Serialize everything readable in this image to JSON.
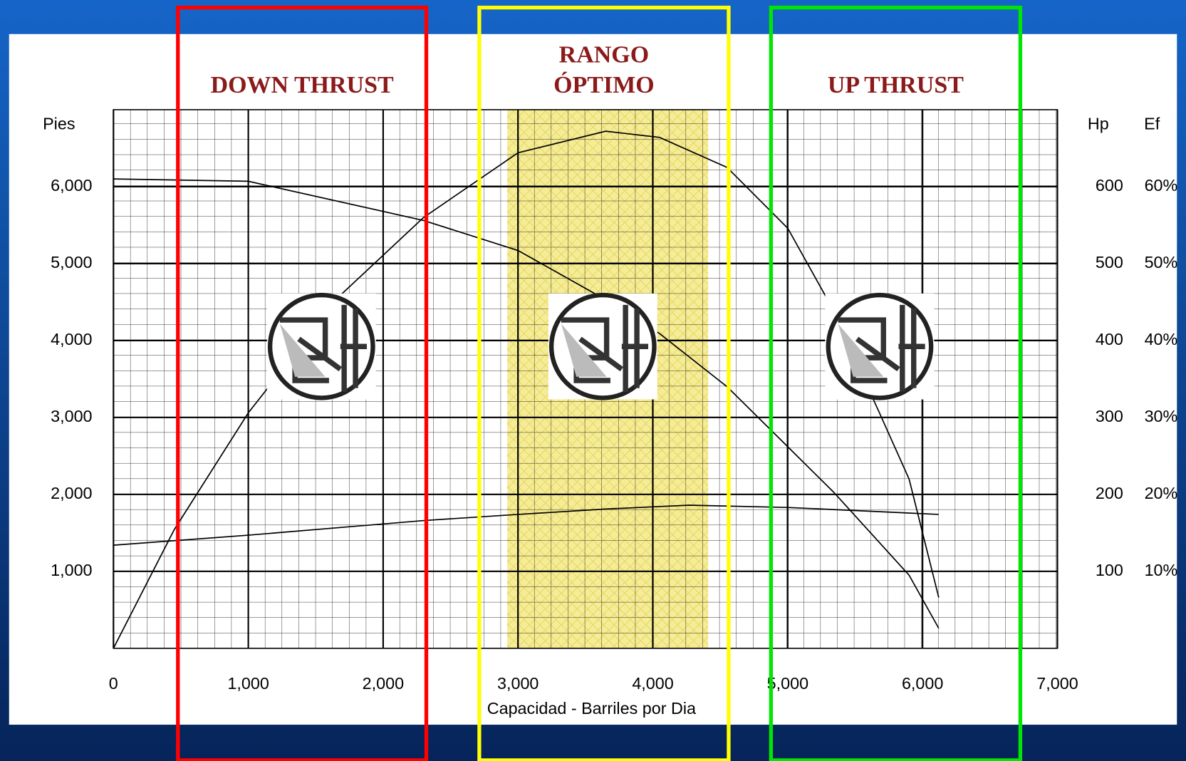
{
  "chart_data": {
    "type": "line",
    "xlabel": "Capacidad - Barriles por Dia",
    "ylabel": "Pies",
    "y2label": "Hp",
    "y3label": "Ef",
    "xlim": [
      0,
      7000
    ],
    "xticks": [
      0,
      {
        "value": 1000,
        "label": "1,000"
      },
      {
        "value": 2000,
        "label": "2,000"
      },
      {
        "value": 3000,
        "label": "3,000"
      },
      {
        "value": 4000,
        "label": "4,000"
      },
      {
        "value": 5000,
        "label": "5,000"
      },
      {
        "value": 6000,
        "label": "6,000"
      },
      {
        "value": 7000,
        "label": "7,000"
      }
    ],
    "ylim": [
      0,
      7000
    ],
    "yticks": [
      {
        "value": 1000,
        "label": "1,000"
      },
      {
        "value": 2000,
        "label": "2,000"
      },
      {
        "value": 3000,
        "label": "3,000"
      },
      {
        "value": 4000,
        "label": "4,000"
      },
      {
        "value": 5000,
        "label": "5,000"
      },
      {
        "value": 6000,
        "label": "6,000"
      }
    ],
    "y2lim": [
      0,
      700
    ],
    "y2ticks": [
      100,
      200,
      300,
      400,
      500,
      600
    ],
    "y3lim": [
      0,
      70
    ],
    "y3ticks": [
      {
        "value": 10,
        "label": "10%"
      },
      {
        "value": 20,
        "label": "20%"
      },
      {
        "value": 30,
        "label": "30%"
      },
      {
        "value": 40,
        "label": "40%"
      },
      {
        "value": 50,
        "label": "50%"
      },
      {
        "value": 60,
        "label": "60%"
      }
    ],
    "grid": true,
    "series": [
      {
        "color": "#000000",
        "axis": "y",
        "x": [
          0,
          1000,
          2300,
          3000,
          3600,
          4050,
          4550,
          5000,
          5340,
          5900,
          6120
        ],
        "values": [
          6100,
          6070,
          5560,
          5170,
          4580,
          4090,
          3400,
          2620,
          2030,
          950,
          260
        ]
      },
      {
        "color": "#000000",
        "axis": "y3",
        "x": [
          0,
          450,
          1000,
          1690,
          2300,
          3000,
          3650,
          4050,
          4550,
          5000,
          5280,
          5670,
          5900,
          6120
        ],
        "values": [
          0,
          15.4,
          30.6,
          46,
          56,
          64.4,
          67.2,
          66.4,
          62.5,
          54.6,
          45.8,
          31,
          22,
          6.6
        ]
      },
      {
        "color": "#000000",
        "axis": "y2",
        "x": [
          0,
          1000,
          2300,
          3000,
          3650,
          4270,
          5000,
          6120
        ],
        "values": [
          134,
          147,
          166,
          174,
          181,
          186,
          183,
          174
        ]
      }
    ],
    "shaded_range": {
      "xrange": [
        2920,
        4410
      ],
      "color": "#f5ec9a"
    },
    "regions": [
      {
        "label": [
          "DOWN THRUST"
        ],
        "xrange": [
          478,
          2320
        ],
        "color": "#ff0000"
      },
      {
        "label": [
          "RANGO",
          "ÓPTIMO"
        ],
        "xrange": [
          2713,
          4562
        ],
        "color": "#ffff00"
      },
      {
        "label": [
          "UP THRUST"
        ],
        "xrange": [
          4876,
          6725
        ],
        "color": "#00e600"
      }
    ]
  }
}
